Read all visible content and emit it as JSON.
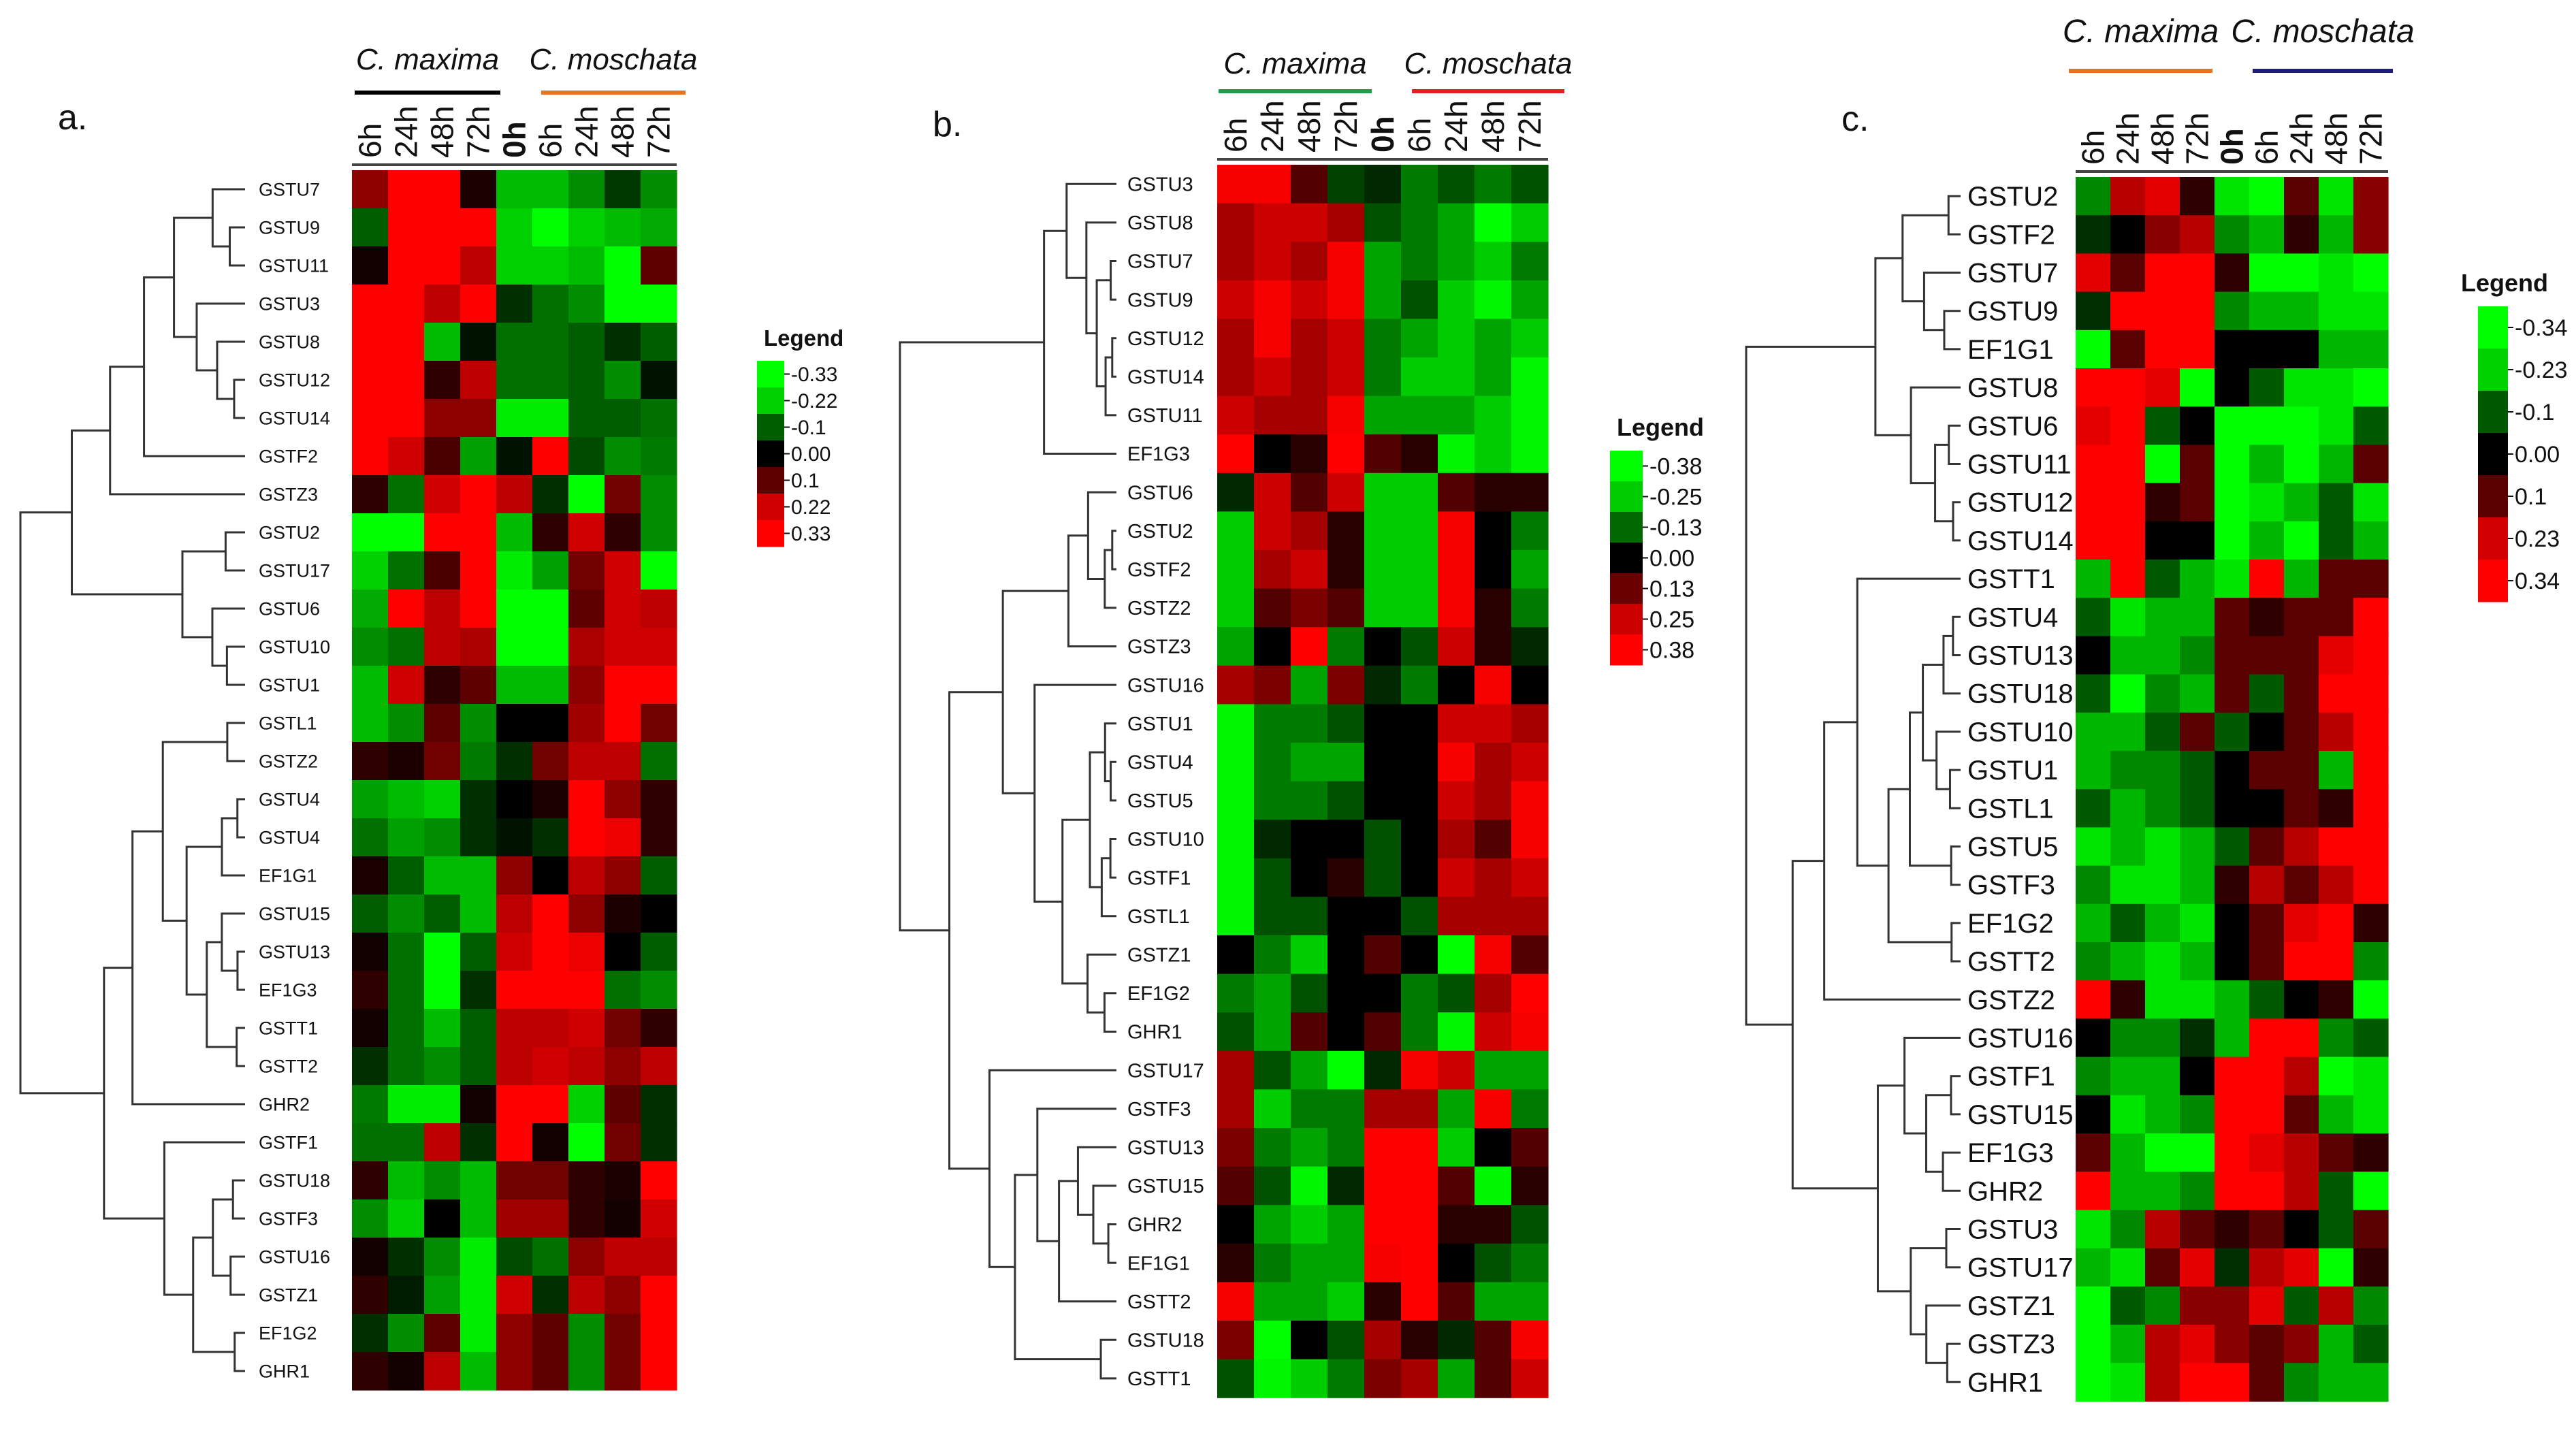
{
  "chart_data": [
    {
      "type": "heatmap",
      "panel_label": "a.",
      "group_labels": [
        "C. maxima",
        "C. moschata"
      ],
      "group_colors": [
        "#000000",
        "#e8731f"
      ],
      "columns": [
        "6h",
        "24h",
        "48h",
        "72h",
        "0h",
        "6h",
        "24h",
        "48h",
        "72h"
      ],
      "rows": [
        "GSTU7",
        "GSTU9",
        "GSTU11",
        "GSTU3",
        "GSTU8",
        "GSTU12",
        "GSTU14",
        "GSTF2",
        "GSTZ3",
        "GSTU2",
        "GSTU17",
        "GSTU6",
        "GSTU10",
        "GSTU1",
        "GSTL1",
        "GSTZ2",
        "GSTU4",
        "GSTU4",
        "EF1G1",
        "GSTU15",
        "GSTU13",
        "EF1G3",
        "GSTT1",
        "GSTT2",
        "GHR2",
        "GSTF1",
        "GSTU18",
        "GSTF3",
        "GSTU16",
        "GSTZ1",
        "EF1G2",
        "GHR1"
      ],
      "values": [
        [
          0.15,
          0.33,
          0.33,
          0.03,
          -0.2,
          -0.2,
          -0.15,
          -0.06,
          -0.15
        ],
        [
          -0.1,
          0.33,
          0.33,
          0.33,
          -0.22,
          -0.3,
          -0.22,
          -0.2,
          -0.18
        ],
        [
          0.02,
          0.33,
          0.33,
          0.2,
          -0.22,
          -0.22,
          -0.2,
          -0.3,
          0.1
        ],
        [
          0.33,
          0.33,
          0.2,
          0.27,
          -0.05,
          -0.12,
          -0.15,
          -0.33,
          -0.33
        ],
        [
          0.33,
          0.3,
          -0.2,
          -0.02,
          -0.12,
          -0.12,
          -0.1,
          -0.05,
          -0.1
        ],
        [
          0.33,
          0.27,
          0.05,
          0.2,
          -0.12,
          -0.12,
          -0.1,
          -0.15,
          -0.02
        ],
        [
          0.33,
          0.27,
          0.15,
          0.15,
          -0.25,
          -0.25,
          -0.1,
          -0.1,
          -0.12
        ],
        [
          0.3,
          0.22,
          0.08,
          -0.17,
          -0.02,
          0.27,
          -0.08,
          -0.15,
          -0.13
        ],
        [
          0.05,
          -0.12,
          0.22,
          0.33,
          0.2,
          -0.05,
          -0.3,
          0.12,
          -0.15
        ],
        [
          -0.33,
          -0.33,
          0.27,
          0.33,
          -0.2,
          0.05,
          0.22,
          0.05,
          -0.15
        ],
        [
          -0.22,
          -0.12,
          0.08,
          0.33,
          -0.25,
          -0.17,
          0.12,
          0.22,
          -0.33
        ],
        [
          -0.18,
          0.3,
          0.2,
          0.27,
          -0.3,
          -0.33,
          0.1,
          0.22,
          0.2
        ],
        [
          -0.15,
          -0.12,
          0.2,
          0.18,
          -0.3,
          -0.33,
          0.18,
          0.22,
          0.22
        ],
        [
          -0.2,
          0.22,
          0.05,
          0.1,
          -0.2,
          -0.2,
          0.15,
          0.27,
          0.3
        ],
        [
          -0.2,
          -0.15,
          0.1,
          -0.15,
          0.0,
          0.0,
          0.17,
          0.27,
          0.12
        ],
        [
          0.05,
          0.03,
          0.12,
          -0.13,
          -0.05,
          0.12,
          0.2,
          0.2,
          -0.12
        ],
        [
          -0.17,
          -0.2,
          -0.22,
          -0.05,
          0.0,
          0.03,
          0.27,
          0.15,
          0.05
        ],
        [
          -0.12,
          -0.17,
          -0.15,
          -0.05,
          -0.02,
          -0.05,
          0.27,
          0.25,
          0.05
        ],
        [
          0.03,
          -0.1,
          -0.2,
          -0.2,
          0.15,
          0.0,
          0.2,
          0.15,
          -0.1
        ],
        [
          -0.1,
          -0.15,
          -0.1,
          -0.2,
          0.2,
          0.27,
          0.15,
          0.03,
          0.0
        ],
        [
          0.02,
          -0.12,
          -0.3,
          -0.1,
          0.22,
          0.3,
          0.25,
          0.0,
          -0.1
        ],
        [
          0.05,
          -0.12,
          -0.33,
          -0.05,
          0.27,
          0.3,
          0.27,
          -0.12,
          -0.15
        ],
        [
          0.02,
          -0.12,
          -0.2,
          -0.1,
          0.2,
          0.2,
          0.22,
          0.12,
          0.05
        ],
        [
          -0.05,
          -0.12,
          -0.15,
          -0.1,
          0.2,
          0.22,
          0.2,
          0.15,
          0.2
        ],
        [
          -0.13,
          -0.25,
          -0.25,
          0.02,
          0.3,
          0.33,
          -0.22,
          0.1,
          -0.05
        ],
        [
          -0.12,
          -0.12,
          0.2,
          -0.05,
          0.33,
          0.02,
          -0.33,
          0.12,
          -0.05
        ],
        [
          0.05,
          -0.2,
          -0.15,
          -0.2,
          0.12,
          0.12,
          0.05,
          0.03,
          0.3
        ],
        [
          -0.15,
          -0.22,
          0.0,
          -0.2,
          0.17,
          0.17,
          0.05,
          0.02,
          0.22
        ],
        [
          0.02,
          -0.05,
          -0.15,
          -0.25,
          -0.08,
          -0.12,
          0.15,
          0.2,
          0.2
        ],
        [
          0.05,
          -0.03,
          -0.17,
          -0.25,
          0.22,
          -0.05,
          0.2,
          0.15,
          0.3
        ],
        [
          -0.05,
          -0.15,
          0.1,
          -0.25,
          0.15,
          0.1,
          -0.15,
          0.12,
          0.3
        ],
        [
          0.05,
          0.02,
          0.2,
          -0.2,
          0.15,
          0.1,
          -0.15,
          0.12,
          0.27
        ]
      ],
      "legend_title": "Legend",
      "legend_labels": [
        "-0.33",
        "-0.22",
        "-0.1",
        "0.00",
        "0.1",
        "0.22",
        "0.33"
      ],
      "range": [
        -0.33,
        0.33
      ]
    },
    {
      "type": "heatmap",
      "panel_label": "b.",
      "group_labels": [
        "C. maxima",
        "C. moschata"
      ],
      "group_colors": [
        "#19a04b",
        "#e81f1f"
      ],
      "columns": [
        "6h",
        "24h",
        "48h",
        "72h",
        "0h",
        "6h",
        "24h",
        "48h",
        "72h"
      ],
      "rows": [
        "GSTU3",
        "GSTU8",
        "GSTU7",
        "GSTU9",
        "GSTU12",
        "GSTU14",
        "GSTU11",
        "EF1G3",
        "GSTU6",
        "GSTU2",
        "GSTF2",
        "GSTZ2",
        "GSTZ3",
        "GSTU16",
        "GSTU1",
        "GSTU4",
        "GSTU5",
        "GSTU10",
        "GSTF1",
        "GSTL1",
        "GSTZ1",
        "EF1G2",
        "GHR1",
        "GSTU17",
        "GSTF3",
        "GSTU13",
        "GSTU15",
        "GHR2",
        "EF1G1",
        "GSTT2",
        "GSTU18",
        "GSTT1"
      ],
      "values": [
        [
          0.3,
          0.3,
          0.1,
          -0.08,
          -0.05,
          -0.15,
          -0.1,
          -0.15,
          -0.1
        ],
        [
          0.2,
          0.25,
          0.25,
          0.2,
          -0.1,
          -0.15,
          -0.2,
          -0.38,
          -0.25
        ],
        [
          0.2,
          0.25,
          0.2,
          0.3,
          -0.2,
          -0.15,
          -0.2,
          -0.25,
          -0.15
        ],
        [
          0.25,
          0.3,
          0.25,
          0.3,
          -0.2,
          -0.1,
          -0.25,
          -0.3,
          -0.2
        ],
        [
          0.2,
          0.3,
          0.2,
          0.25,
          -0.15,
          -0.2,
          -0.25,
          -0.2,
          -0.25
        ],
        [
          0.2,
          0.25,
          0.2,
          0.25,
          -0.15,
          -0.25,
          -0.25,
          -0.2,
          -0.3
        ],
        [
          0.25,
          0.2,
          0.2,
          0.3,
          -0.2,
          -0.2,
          -0.2,
          -0.25,
          -0.3
        ],
        [
          0.38,
          0.0,
          0.05,
          0.38,
          0.1,
          0.05,
          -0.3,
          -0.25,
          -0.3
        ],
        [
          -0.05,
          0.25,
          0.1,
          0.25,
          -0.25,
          -0.25,
          0.1,
          0.05,
          0.05
        ],
        [
          -0.25,
          0.25,
          0.2,
          0.05,
          -0.25,
          -0.25,
          0.3,
          0.0,
          -0.15
        ],
        [
          -0.25,
          0.2,
          0.25,
          0.05,
          -0.25,
          -0.25,
          0.3,
          0.0,
          -0.2
        ],
        [
          -0.25,
          0.1,
          0.15,
          0.1,
          -0.25,
          -0.25,
          0.3,
          0.05,
          -0.15
        ],
        [
          -0.2,
          0.0,
          0.38,
          -0.15,
          0.0,
          -0.1,
          0.25,
          0.05,
          -0.05
        ],
        [
          0.2,
          0.15,
          -0.2,
          0.15,
          -0.05,
          -0.15,
          0.0,
          0.3,
          0.0
        ],
        [
          -0.3,
          -0.15,
          -0.15,
          -0.1,
          0.0,
          0.0,
          0.25,
          0.25,
          0.2
        ],
        [
          -0.3,
          -0.15,
          -0.2,
          -0.2,
          0.0,
          0.0,
          0.3,
          0.2,
          0.25
        ],
        [
          -0.3,
          -0.15,
          -0.15,
          -0.1,
          0.0,
          0.0,
          0.25,
          0.2,
          0.3
        ],
        [
          -0.3,
          -0.05,
          0.0,
          0.0,
          -0.1,
          0.0,
          0.2,
          0.1,
          0.3
        ],
        [
          -0.3,
          -0.1,
          0.0,
          0.05,
          -0.1,
          0.0,
          0.25,
          0.2,
          0.25
        ],
        [
          -0.3,
          -0.1,
          -0.1,
          0.0,
          0.0,
          -0.1,
          0.2,
          0.2,
          0.2
        ],
        [
          0.0,
          -0.15,
          -0.25,
          0.0,
          0.1,
          0.0,
          -0.38,
          0.3,
          0.1
        ],
        [
          -0.15,
          -0.2,
          -0.1,
          0.0,
          0.0,
          -0.15,
          -0.1,
          0.2,
          0.38
        ],
        [
          -0.1,
          -0.2,
          0.1,
          0.0,
          0.1,
          -0.15,
          -0.3,
          0.25,
          0.3
        ],
        [
          0.2,
          -0.1,
          -0.2,
          -0.38,
          -0.05,
          0.3,
          0.25,
          -0.2,
          -0.2
        ],
        [
          0.2,
          -0.25,
          -0.15,
          -0.15,
          0.2,
          0.2,
          -0.2,
          0.3,
          -0.15
        ],
        [
          0.15,
          -0.15,
          -0.2,
          -0.15,
          0.38,
          0.38,
          -0.25,
          0.0,
          0.1
        ],
        [
          0.1,
          -0.1,
          -0.3,
          -0.05,
          0.38,
          0.38,
          0.1,
          -0.3,
          0.05
        ],
        [
          0.0,
          -0.2,
          -0.25,
          -0.2,
          0.38,
          0.38,
          0.05,
          0.05,
          -0.1
        ],
        [
          0.05,
          -0.15,
          -0.2,
          -0.2,
          0.3,
          0.38,
          0.0,
          -0.1,
          -0.15
        ],
        [
          0.3,
          -0.2,
          -0.2,
          -0.25,
          0.05,
          0.38,
          0.1,
          -0.2,
          -0.2
        ],
        [
          0.15,
          -0.38,
          0.0,
          -0.1,
          0.2,
          0.05,
          -0.05,
          0.1,
          0.3
        ],
        [
          -0.1,
          -0.3,
          -0.25,
          -0.15,
          0.15,
          0.2,
          -0.2,
          0.1,
          0.25
        ]
      ],
      "legend_title": "Legend",
      "legend_labels": [
        "-0.38",
        "-0.25",
        "-0.13",
        "0.00",
        "0.13",
        "0.25",
        "0.38"
      ],
      "range": [
        -0.38,
        0.38
      ]
    },
    {
      "type": "heatmap",
      "panel_label": "c.",
      "group_labels": [
        "C. maxima",
        "C. moschata"
      ],
      "group_colors": [
        "#e8731f",
        "#1e1f78"
      ],
      "columns": [
        "6h",
        "24h",
        "48h",
        "72h",
        "0h",
        "6h",
        "24h",
        "48h",
        "72h"
      ],
      "rows": [
        "GSTU2",
        "GSTF2",
        "GSTU7",
        "GSTU9",
        "EF1G1",
        "GSTU8",
        "GSTU6",
        "GSTU11",
        "GSTU12",
        "GSTU14",
        "GSTT1",
        "GSTU4",
        "GSTU13",
        "GSTU18",
        "GSTU10",
        "GSTU1",
        "GSTL1",
        "GSTU5",
        "GSTF3",
        "EF1G2",
        "GSTT2",
        "GSTZ2",
        "GSTU16",
        "GSTF1",
        "GSTU15",
        "EF1G3",
        "GHR2",
        "GSTU3",
        "GSTU17",
        "GSTZ1",
        "GSTZ3",
        "GHR1"
      ],
      "values": [
        [
          -0.15,
          0.2,
          0.25,
          0.05,
          -0.25,
          -0.34,
          0.1,
          -0.25,
          0.15
        ],
        [
          -0.05,
          0.0,
          0.15,
          0.2,
          -0.15,
          -0.2,
          0.05,
          -0.2,
          0.15
        ],
        [
          0.25,
          0.1,
          0.34,
          0.34,
          0.05,
          -0.34,
          -0.34,
          -0.25,
          -0.3
        ],
        [
          -0.05,
          0.34,
          0.34,
          0.34,
          -0.15,
          -0.2,
          -0.2,
          -0.25,
          -0.25
        ],
        [
          -0.3,
          0.1,
          0.34,
          0.34,
          0.0,
          0.0,
          0.0,
          -0.2,
          -0.2
        ],
        [
          0.34,
          0.34,
          0.25,
          -0.34,
          0.0,
          -0.1,
          -0.25,
          -0.25,
          -0.3
        ],
        [
          0.25,
          0.34,
          -0.1,
          0.0,
          -0.34,
          -0.3,
          -0.34,
          -0.25,
          -0.1
        ],
        [
          0.34,
          0.34,
          -0.3,
          0.1,
          -0.34,
          -0.2,
          -0.34,
          -0.2,
          0.1
        ],
        [
          0.34,
          0.34,
          0.05,
          0.1,
          -0.3,
          -0.25,
          -0.2,
          -0.1,
          -0.25
        ],
        [
          0.34,
          0.34,
          0.0,
          0.0,
          -0.34,
          -0.2,
          -0.34,
          -0.1,
          -0.2
        ],
        [
          -0.2,
          0.34,
          -0.1,
          -0.2,
          -0.25,
          0.3,
          -0.2,
          0.1,
          0.1
        ],
        [
          -0.1,
          -0.25,
          -0.2,
          -0.2,
          0.1,
          0.05,
          0.1,
          0.1,
          0.34
        ],
        [
          0.0,
          -0.2,
          -0.2,
          -0.15,
          0.1,
          0.1,
          0.1,
          0.25,
          0.34
        ],
        [
          -0.1,
          -0.3,
          -0.15,
          -0.2,
          0.1,
          -0.1,
          0.1,
          0.3,
          0.34
        ],
        [
          -0.2,
          -0.2,
          -0.1,
          0.1,
          -0.1,
          0.0,
          0.1,
          0.2,
          0.34
        ],
        [
          -0.2,
          -0.15,
          -0.15,
          -0.1,
          0.0,
          0.1,
          0.1,
          -0.2,
          0.3
        ],
        [
          -0.1,
          -0.2,
          -0.15,
          -0.1,
          0.0,
          0.0,
          0.1,
          0.05,
          0.34
        ],
        [
          -0.25,
          -0.2,
          -0.25,
          -0.2,
          -0.1,
          0.1,
          0.2,
          0.3,
          0.3
        ],
        [
          -0.15,
          -0.25,
          -0.25,
          -0.2,
          0.05,
          0.2,
          0.1,
          0.2,
          0.34
        ],
        [
          -0.2,
          -0.1,
          -0.2,
          -0.25,
          0.0,
          0.1,
          0.25,
          0.34,
          0.05
        ],
        [
          -0.15,
          -0.2,
          -0.25,
          -0.2,
          0.0,
          0.1,
          0.3,
          0.34,
          -0.15
        ],
        [
          0.3,
          0.05,
          -0.25,
          -0.25,
          -0.2,
          -0.1,
          0.0,
          0.05,
          -0.3
        ],
        [
          0.0,
          -0.15,
          -0.15,
          -0.05,
          -0.2,
          0.34,
          0.3,
          -0.15,
          -0.1
        ],
        [
          -0.15,
          -0.2,
          -0.2,
          0.0,
          0.34,
          0.34,
          0.2,
          -0.3,
          -0.25
        ],
        [
          0.0,
          -0.25,
          -0.2,
          -0.15,
          0.34,
          0.3,
          0.1,
          -0.2,
          -0.25
        ],
        [
          0.1,
          -0.2,
          -0.3,
          -0.34,
          0.34,
          0.25,
          0.2,
          0.1,
          0.05
        ],
        [
          0.34,
          -0.2,
          -0.2,
          -0.15,
          0.34,
          0.3,
          0.2,
          -0.1,
          -0.3
        ],
        [
          -0.25,
          -0.15,
          0.2,
          0.1,
          0.05,
          0.1,
          0.0,
          -0.1,
          0.1
        ],
        [
          -0.2,
          -0.25,
          0.1,
          0.25,
          -0.05,
          0.2,
          0.25,
          -0.3,
          0.05
        ],
        [
          -0.3,
          -0.1,
          -0.15,
          0.15,
          0.15,
          0.25,
          -0.1,
          0.2,
          -0.15
        ],
        [
          -0.3,
          -0.2,
          0.2,
          0.25,
          0.15,
          0.1,
          0.15,
          -0.2,
          -0.1
        ],
        [
          -0.3,
          -0.25,
          0.2,
          0.34,
          0.34,
          0.1,
          -0.15,
          -0.2,
          -0.2
        ]
      ],
      "legend_title": "Legend",
      "legend_labels": [
        "-0.34",
        "-0.23",
        "-0.1",
        "0.00",
        "0.1",
        "0.23",
        "0.34"
      ],
      "range": [
        -0.34,
        0.34
      ]
    }
  ]
}
